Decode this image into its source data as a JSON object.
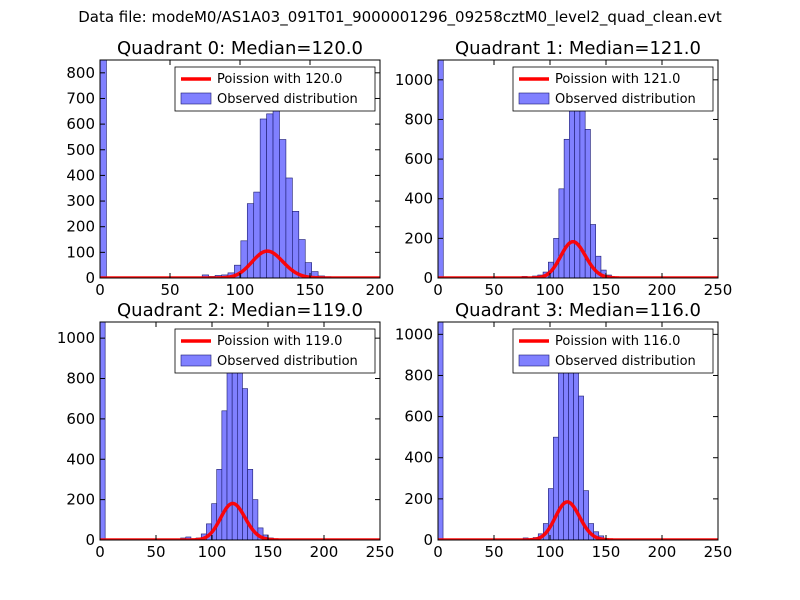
{
  "suptitle": "Data file: modeM0/AS1A03_091T01_9000001296_09258cztM0_level2_quad_clean.evt",
  "colors": {
    "bar_fill": "#8080ff",
    "bar_edge": "#1a1a6e",
    "poisson_line": "#ff0000"
  },
  "chart_data": [
    {
      "type": "bar",
      "title": "Quadrant 0: Median=120.0",
      "xlim": [
        0,
        200
      ],
      "ylim": [
        0,
        850
      ],
      "xticks": [
        0,
        50,
        100,
        150,
        200
      ],
      "yticks": [
        0,
        100,
        200,
        300,
        400,
        500,
        600,
        700,
        800
      ],
      "legend": {
        "location": "top-right",
        "line_label": "Poission with 120.0",
        "bar_label": "Observed distribution"
      },
      "bin_width": 4.6,
      "bins": [
        {
          "x": 0,
          "y": 850
        },
        {
          "x": 73,
          "y": 12
        },
        {
          "x": 77.6,
          "y": 6
        },
        {
          "x": 82.2,
          "y": 10
        },
        {
          "x": 86.8,
          "y": 12
        },
        {
          "x": 91.4,
          "y": 20
        },
        {
          "x": 96,
          "y": 50
        },
        {
          "x": 100.6,
          "y": 145
        },
        {
          "x": 105.2,
          "y": 290
        },
        {
          "x": 109.8,
          "y": 335
        },
        {
          "x": 114.4,
          "y": 620
        },
        {
          "x": 119,
          "y": 640
        },
        {
          "x": 123.6,
          "y": 700
        },
        {
          "x": 128.2,
          "y": 540
        },
        {
          "x": 132.8,
          "y": 390
        },
        {
          "x": 137.4,
          "y": 260
        },
        {
          "x": 142,
          "y": 150
        },
        {
          "x": 146.6,
          "y": 60
        },
        {
          "x": 151.2,
          "y": 25
        },
        {
          "x": 155.8,
          "y": 8
        },
        {
          "x": 160.4,
          "y": 5
        }
      ],
      "poisson": {
        "mean": 120.0,
        "scale": 2880
      }
    },
    {
      "type": "bar",
      "title": "Quadrant 1: Median=121.0",
      "xlim": [
        0,
        250
      ],
      "ylim": [
        0,
        1100
      ],
      "xticks": [
        0,
        50,
        100,
        150,
        200,
        250
      ],
      "yticks": [
        0,
        200,
        400,
        600,
        800,
        1000
      ],
      "legend": {
        "location": "top-right",
        "line_label": "Poission with 121.0",
        "bar_label": "Observed distribution"
      },
      "bin_width": 4.7,
      "bins": [
        {
          "x": 0,
          "y": 1100
        },
        {
          "x": 75,
          "y": 8
        },
        {
          "x": 84.4,
          "y": 10
        },
        {
          "x": 89.1,
          "y": 15
        },
        {
          "x": 93.8,
          "y": 30
        },
        {
          "x": 98.5,
          "y": 80
        },
        {
          "x": 103.2,
          "y": 200
        },
        {
          "x": 107.9,
          "y": 450
        },
        {
          "x": 112.6,
          "y": 700
        },
        {
          "x": 117.3,
          "y": 900
        },
        {
          "x": 122,
          "y": 980
        },
        {
          "x": 126.7,
          "y": 890
        },
        {
          "x": 131.4,
          "y": 750
        },
        {
          "x": 136.1,
          "y": 270
        },
        {
          "x": 140.8,
          "y": 110
        },
        {
          "x": 145.5,
          "y": 40
        },
        {
          "x": 150.2,
          "y": 15
        },
        {
          "x": 154.9,
          "y": 5
        }
      ],
      "poisson": {
        "mean": 121.0,
        "scale": 5050
      }
    },
    {
      "type": "bar",
      "title": "Quadrant 2: Median=119.0",
      "xlim": [
        0,
        250
      ],
      "ylim": [
        0,
        1080
      ],
      "xticks": [
        0,
        50,
        100,
        150,
        200,
        250
      ],
      "yticks": [
        0,
        200,
        400,
        600,
        800,
        1000
      ],
      "legend": {
        "location": "top-right",
        "line_label": "Poission with 119.0",
        "bar_label": "Observed distribution"
      },
      "bin_width": 4.6,
      "bins": [
        {
          "x": 0,
          "y": 1080
        },
        {
          "x": 72,
          "y": 10
        },
        {
          "x": 76.6,
          "y": 15
        },
        {
          "x": 81.2,
          "y": 5
        },
        {
          "x": 85.8,
          "y": 10
        },
        {
          "x": 90.4,
          "y": 30
        },
        {
          "x": 95,
          "y": 80
        },
        {
          "x": 99.6,
          "y": 180
        },
        {
          "x": 104.2,
          "y": 350
        },
        {
          "x": 108.8,
          "y": 640
        },
        {
          "x": 113.4,
          "y": 850
        },
        {
          "x": 118,
          "y": 1000
        },
        {
          "x": 122.6,
          "y": 900
        },
        {
          "x": 127.2,
          "y": 750
        },
        {
          "x": 131.8,
          "y": 350
        },
        {
          "x": 136.4,
          "y": 200
        },
        {
          "x": 141,
          "y": 60
        },
        {
          "x": 145.6,
          "y": 25
        },
        {
          "x": 150.2,
          "y": 10
        },
        {
          "x": 154.8,
          "y": 5
        }
      ],
      "poisson": {
        "mean": 119.0,
        "scale": 4950
      }
    },
    {
      "type": "bar",
      "title": "Quadrant 3: Median=116.0",
      "xlim": [
        0,
        250
      ],
      "ylim": [
        0,
        1060
      ],
      "xticks": [
        0,
        50,
        100,
        150,
        200,
        250
      ],
      "yticks": [
        0,
        200,
        400,
        600,
        800,
        1000
      ],
      "legend": {
        "location": "top-right",
        "line_label": "Poission with 116.0",
        "bar_label": "Observed distribution"
      },
      "bin_width": 4.5,
      "bins": [
        {
          "x": 0,
          "y": 1060
        },
        {
          "x": 76,
          "y": 10
        },
        {
          "x": 80.5,
          "y": 5
        },
        {
          "x": 85,
          "y": 12
        },
        {
          "x": 89.5,
          "y": 30
        },
        {
          "x": 94,
          "y": 80
        },
        {
          "x": 98.5,
          "y": 250
        },
        {
          "x": 103,
          "y": 500
        },
        {
          "x": 107.5,
          "y": 860
        },
        {
          "x": 112,
          "y": 920
        },
        {
          "x": 116.5,
          "y": 1000
        },
        {
          "x": 121,
          "y": 900
        },
        {
          "x": 125.5,
          "y": 700
        },
        {
          "x": 130,
          "y": 240
        },
        {
          "x": 134.5,
          "y": 80
        },
        {
          "x": 139,
          "y": 40
        },
        {
          "x": 143.5,
          "y": 20
        },
        {
          "x": 148,
          "y": 5
        }
      ],
      "poisson": {
        "mean": 116.0,
        "scale": 5000
      }
    }
  ]
}
